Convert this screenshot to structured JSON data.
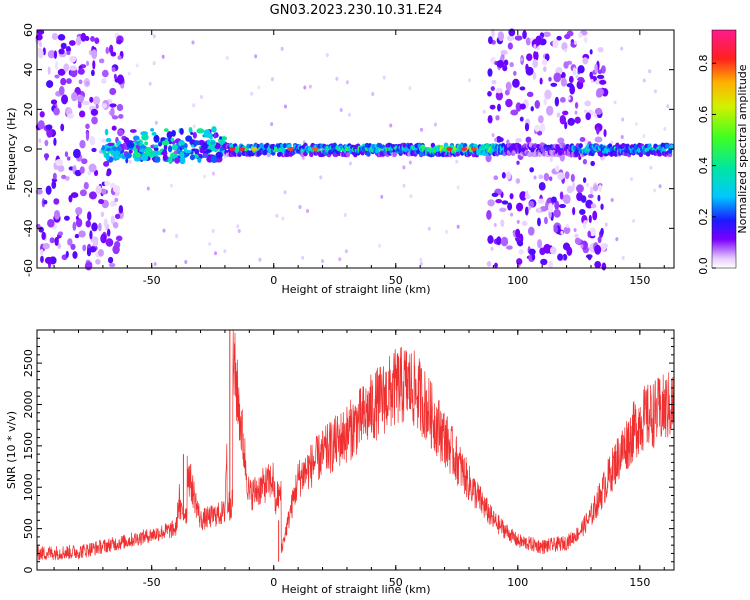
{
  "figure": {
    "title": "GN03.2023.230.10.31.E24"
  },
  "chart_data": [
    {
      "type": "heatmap",
      "xlabel": "Height of straight line (km)",
      "ylabel": "Frequency (Hz)",
      "xlim": [
        -97,
        164
      ],
      "ylim": [
        -60,
        60
      ],
      "x_ticks": [
        -50,
        0,
        50,
        100,
        150
      ],
      "x_tick_labels": [
        "-50",
        "0",
        "50",
        "100",
        "150"
      ],
      "y_ticks": [
        -60,
        -40,
        -20,
        0,
        20,
        40,
        60
      ],
      "y_tick_labels": [
        "-60",
        "-40",
        "-20",
        "0",
        "20",
        "40",
        "60"
      ],
      "colorbar": {
        "label": "Normalized spectral amplitude",
        "range": [
          0,
          0.93
        ],
        "ticks": [
          0,
          0.2,
          0.4,
          0.6,
          0.8
        ],
        "tick_labels": [
          "0.0",
          "0.2",
          "0.4",
          "0.6",
          "0.8"
        ],
        "colormap": "rainbow (purple low -> red/pink high)"
      },
      "features": [
        {
          "description_x_range": [
            -97,
            -70
          ],
          "frequency_range": [
            -60,
            60
          ],
          "amplitude": 0.15
        },
        {
          "description_x_range": [
            -70,
            -20
          ],
          "frequency_range": [
            -5,
            8
          ],
          "amplitude": 0.3
        },
        {
          "description_x_range": [
            -20,
            95
          ],
          "frequency_range": [
            -2,
            2
          ],
          "amplitude": 0.7
        },
        {
          "description_x_range": [
            90,
            135
          ],
          "frequency_range": [
            -60,
            60
          ],
          "amplitude": 0.15
        },
        {
          "description_x_range": [
            120,
            164
          ],
          "frequency_range": [
            -3,
            3
          ],
          "amplitude": 0.45
        }
      ]
    },
    {
      "type": "line",
      "xlabel": "Height of straight line (km)",
      "ylabel": "SNR (10 * v/v)",
      "xlim": [
        -97,
        164
      ],
      "ylim": [
        0,
        2900
      ],
      "x_ticks": [
        -50,
        0,
        50,
        100,
        150
      ],
      "x_tick_labels": [
        "-50",
        "0",
        "50",
        "100",
        "150"
      ],
      "y_ticks": [
        0,
        500,
        1000,
        1500,
        2000,
        2500
      ],
      "y_tick_labels": [
        "0",
        "500",
        "1000",
        "1500",
        "2000",
        "2500"
      ],
      "series": [
        {
          "color": "#f03030",
          "x": [
            -97,
            -80,
            -60,
            -40,
            -37,
            -30,
            -20,
            -18,
            -10,
            0,
            2,
            10,
            20,
            30,
            40,
            50,
            55,
            60,
            70,
            80,
            90,
            100,
            110,
            120,
            125,
            130,
            140,
            150,
            160,
            164
          ],
          "y": [
            200,
            220,
            350,
            500,
            1400,
            600,
            700,
            2900,
            900,
            1100,
            100,
            1100,
            1400,
            1650,
            1950,
            2200,
            2250,
            2100,
            1600,
            1050,
            600,
            350,
            280,
            330,
            450,
            650,
            1300,
            1800,
            1950,
            2000
          ]
        }
      ]
    }
  ]
}
